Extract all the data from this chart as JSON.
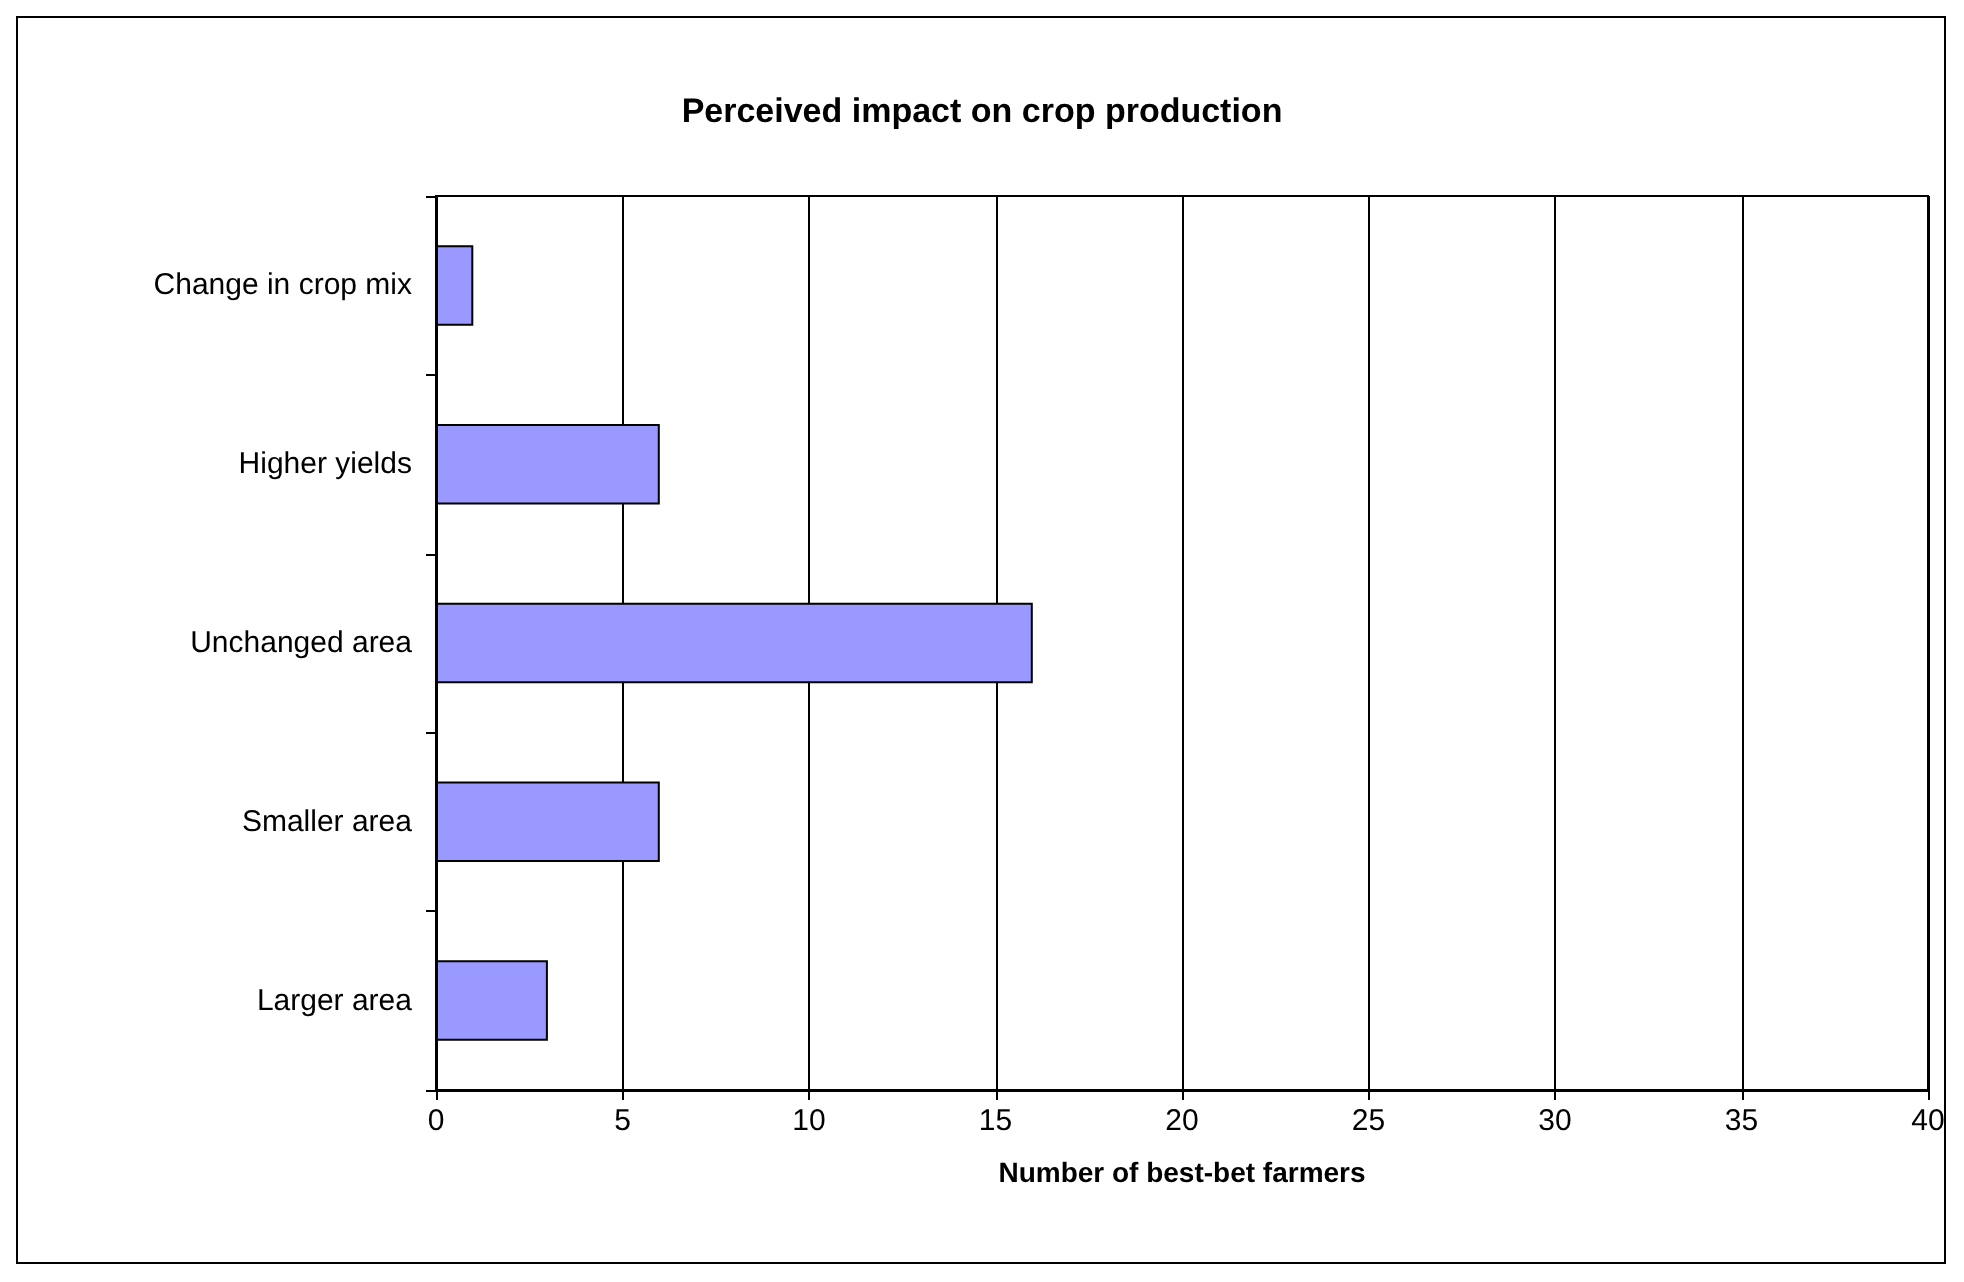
{
  "chart_data": {
    "type": "bar",
    "orientation": "horizontal",
    "title": "Perceived impact on crop production",
    "categories": [
      "Change in crop mix",
      "Higher yields",
      "Unchanged area",
      "Smaller area",
      "Larger area"
    ],
    "values": [
      1,
      6,
      16,
      6,
      3
    ],
    "color": "#9999ff",
    "xlabel": "Number of best-bet farmers",
    "xlim": [
      0,
      40
    ],
    "xticks": [
      0,
      5,
      10,
      15,
      20,
      25,
      30,
      35,
      40
    ],
    "grid": "x"
  }
}
